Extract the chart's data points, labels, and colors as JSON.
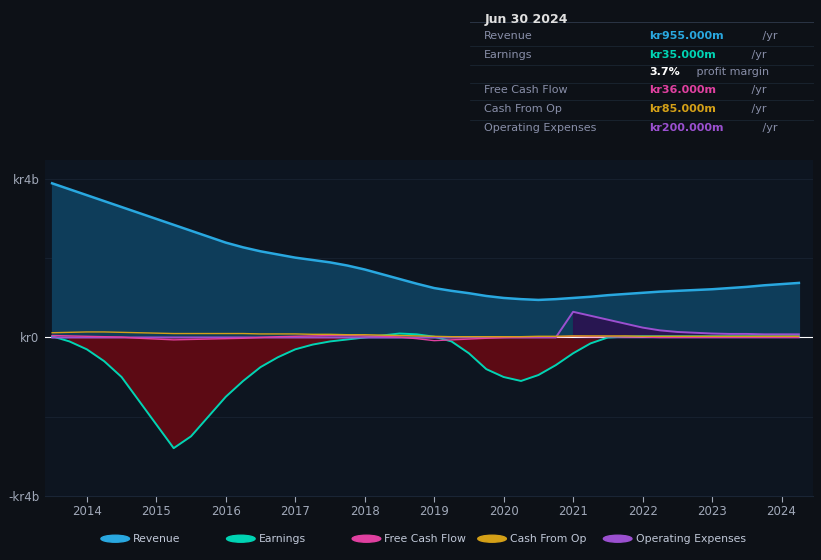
{
  "bg_color": "#0d1117",
  "plot_bg_color": "#0d1520",
  "grid_color": "#1a2535",
  "zero_line_color": "#ffffff",
  "title_date": "Jun 30 2024",
  "years": [
    2013.5,
    2013.75,
    2014.0,
    2014.25,
    2014.5,
    2014.75,
    2015.0,
    2015.25,
    2015.5,
    2015.75,
    2016.0,
    2016.25,
    2016.5,
    2016.75,
    2017.0,
    2017.25,
    2017.5,
    2017.75,
    2018.0,
    2018.25,
    2018.5,
    2018.75,
    2019.0,
    2019.25,
    2019.5,
    2019.75,
    2020.0,
    2020.25,
    2020.5,
    2020.75,
    2021.0,
    2021.25,
    2021.5,
    2021.75,
    2022.0,
    2022.25,
    2022.5,
    2022.75,
    2023.0,
    2023.25,
    2023.5,
    2023.75,
    2024.0,
    2024.25
  ],
  "revenue": [
    3.9,
    3.75,
    3.6,
    3.45,
    3.3,
    3.15,
    3.0,
    2.85,
    2.7,
    2.55,
    2.4,
    2.28,
    2.18,
    2.1,
    2.02,
    1.96,
    1.9,
    1.82,
    1.72,
    1.6,
    1.48,
    1.36,
    1.25,
    1.18,
    1.12,
    1.05,
    1.0,
    0.97,
    0.95,
    0.97,
    1.0,
    1.03,
    1.07,
    1.1,
    1.13,
    1.16,
    1.18,
    1.2,
    1.22,
    1.25,
    1.28,
    1.32,
    1.35,
    1.38
  ],
  "earnings": [
    0.03,
    -0.1,
    -0.3,
    -0.6,
    -1.0,
    -1.6,
    -2.2,
    -2.8,
    -2.5,
    -2.0,
    -1.5,
    -1.1,
    -0.75,
    -0.5,
    -0.3,
    -0.18,
    -0.1,
    -0.05,
    0.0,
    0.05,
    0.1,
    0.08,
    0.02,
    -0.1,
    -0.4,
    -0.8,
    -1.0,
    -1.1,
    -0.95,
    -0.7,
    -0.4,
    -0.15,
    0.0,
    0.02,
    0.03,
    0.03,
    0.03,
    0.03,
    0.03,
    0.03,
    0.03,
    0.03,
    0.03,
    0.03
  ],
  "free_cash_flow": [
    0.05,
    0.04,
    0.03,
    0.02,
    0.01,
    -0.02,
    -0.04,
    -0.06,
    -0.05,
    -0.04,
    -0.03,
    -0.02,
    0.0,
    0.02,
    0.03,
    0.04,
    0.05,
    0.05,
    0.04,
    0.03,
    0.01,
    -0.03,
    -0.08,
    -0.06,
    -0.04,
    -0.02,
    0.0,
    0.01,
    0.02,
    0.02,
    0.03,
    0.02,
    0.02,
    0.01,
    0.01,
    0.0,
    0.0,
    0.0,
    0.0,
    0.0,
    0.0,
    0.0,
    0.0,
    0.0
  ],
  "cash_from_op": [
    0.12,
    0.13,
    0.14,
    0.14,
    0.13,
    0.12,
    0.11,
    0.1,
    0.1,
    0.1,
    0.1,
    0.1,
    0.09,
    0.09,
    0.09,
    0.08,
    0.08,
    0.07,
    0.07,
    0.06,
    0.05,
    0.04,
    0.03,
    0.02,
    0.02,
    0.02,
    0.02,
    0.02,
    0.03,
    0.03,
    0.04,
    0.04,
    0.04,
    0.04,
    0.03,
    0.03,
    0.03,
    0.03,
    0.03,
    0.03,
    0.03,
    0.03,
    0.03,
    0.03
  ],
  "operating_expenses": [
    0.0,
    0.0,
    0.0,
    0.0,
    0.0,
    0.0,
    0.0,
    0.0,
    0.0,
    0.0,
    0.0,
    0.0,
    0.0,
    0.0,
    0.0,
    0.0,
    0.0,
    0.0,
    0.0,
    0.0,
    0.0,
    0.0,
    0.0,
    0.0,
    0.0,
    0.0,
    0.0,
    0.0,
    0.0,
    0.0,
    0.65,
    0.55,
    0.45,
    0.35,
    0.25,
    0.18,
    0.14,
    0.12,
    0.1,
    0.09,
    0.09,
    0.08,
    0.08,
    0.08
  ],
  "revenue_color": "#29a8e0",
  "revenue_fill_color": "#0e3d5a",
  "earnings_color": "#00d4b4",
  "earnings_fill_neg_color": "#5c0a14",
  "earnings_fill_pos_color": "#0e3d30",
  "free_cash_flow_color": "#e040a0",
  "cash_from_op_color": "#d4a017",
  "operating_expenses_color": "#9b50d0",
  "operating_expenses_fill_color": "#2d1050",
  "ylim": [
    -4.0,
    4.5
  ],
  "xlim": [
    2013.4,
    2024.45
  ],
  "xticks": [
    2014,
    2015,
    2016,
    2017,
    2018,
    2019,
    2020,
    2021,
    2022,
    2023,
    2024
  ],
  "ytick_positions": [
    -4.0,
    0.0,
    4.0
  ],
  "ytick_labels": [
    "-kr4b",
    "kr0",
    "kr4b"
  ],
  "legend_items": [
    {
      "label": "Revenue",
      "color": "#29a8e0"
    },
    {
      "label": "Earnings",
      "color": "#00d4b4"
    },
    {
      "label": "Free Cash Flow",
      "color": "#e040a0"
    },
    {
      "label": "Cash From Op",
      "color": "#d4a017"
    },
    {
      "label": "Operating Expenses",
      "color": "#9b50d0"
    }
  ],
  "table_rows": [
    {
      "label": "Revenue",
      "value": "kr955.000m",
      "value_color": "#29a8e0",
      "suffix": " /yr"
    },
    {
      "label": "Earnings",
      "value": "kr35.000m",
      "value_color": "#00d4b4",
      "suffix": " /yr"
    },
    {
      "label": "",
      "value": "3.7%",
      "value_color": "#ffffff",
      "suffix": " profit margin"
    },
    {
      "label": "Free Cash Flow",
      "value": "kr36.000m",
      "value_color": "#e040a0",
      "suffix": " /yr"
    },
    {
      "label": "Cash From Op",
      "value": "kr85.000m",
      "value_color": "#d4a017",
      "suffix": " /yr"
    },
    {
      "label": "Operating Expenses",
      "value": "kr200.000m",
      "value_color": "#9b50d0",
      "suffix": " /yr"
    }
  ]
}
